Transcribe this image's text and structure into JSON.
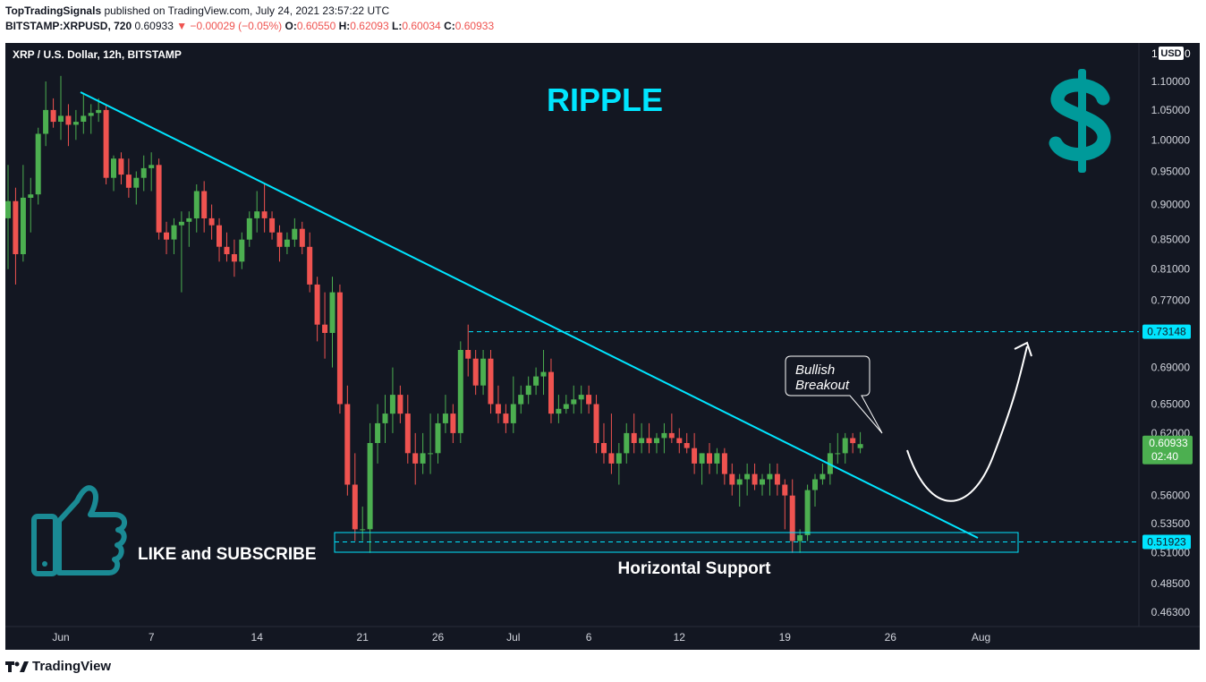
{
  "header": {
    "publisher": "TopTradingSignals",
    "published_text": " published on TradingView.com, July 24, 2021 23:57:22 UTC",
    "symbol": "BITSTAMP:XRPUSD, 720",
    "last": "0.60933",
    "change": "▼ −0.00029 (−0.05%)",
    "o_label": "O:",
    "o": "0.60550",
    "h_label": "H:",
    "h": "0.62093",
    "l_label": "L:",
    "l": "0.60034",
    "c_label": "C:",
    "c": "0.60933"
  },
  "chart_data": {
    "type": "candlestick",
    "title": "XRP / U.S. Dollar, 12h, BITSTAMP",
    "currency": "USD",
    "y_scale": "log",
    "ylim": [
      0.445,
      1.2
    ],
    "y_ticks": [
      "1.10000",
      "1.05000",
      "1.00000",
      "0.95000",
      "0.90000",
      "0.85000",
      "0.81000",
      "0.77000",
      "0.69000",
      "0.65000",
      "0.62000",
      "0.56000",
      "0.53500",
      "0.51000",
      "0.48500",
      "0.46300"
    ],
    "x_ticks": [
      {
        "label": "Jun",
        "i": 7
      },
      {
        "label": "7",
        "i": 19
      },
      {
        "label": "14",
        "i": 33
      },
      {
        "label": "21",
        "i": 47
      },
      {
        "label": "26",
        "i": 57
      },
      {
        "label": "Jul",
        "i": 67
      },
      {
        "label": "6",
        "i": 77
      },
      {
        "label": "12",
        "i": 89
      },
      {
        "label": "19",
        "i": 103
      },
      {
        "label": "26",
        "i": 117
      },
      {
        "label": "Aug",
        "i": 129
      }
    ],
    "ohlc": [
      [
        0.88,
        0.96,
        0.81,
        0.905
      ],
      [
        0.905,
        0.925,
        0.79,
        0.83
      ],
      [
        0.83,
        0.96,
        0.82,
        0.91
      ],
      [
        0.91,
        0.94,
        0.86,
        0.915
      ],
      [
        0.915,
        1.02,
        0.9,
        1.01
      ],
      [
        1.01,
        1.1,
        0.99,
        1.05
      ],
      [
        1.05,
        1.07,
        1.02,
        1.03
      ],
      [
        1.03,
        1.11,
        1.0,
        1.04
      ],
      [
        1.04,
        1.06,
        0.99,
        1.025
      ],
      [
        1.025,
        1.05,
        1.0,
        1.03
      ],
      [
        1.03,
        1.08,
        1.01,
        1.04
      ],
      [
        1.04,
        1.06,
        1.01,
        1.045
      ],
      [
        1.045,
        1.07,
        1.03,
        1.05
      ],
      [
        1.05,
        1.06,
        0.93,
        0.94
      ],
      [
        0.94,
        0.975,
        0.92,
        0.97
      ],
      [
        0.97,
        0.98,
        0.93,
        0.945
      ],
      [
        0.945,
        0.97,
        0.91,
        0.925
      ],
      [
        0.925,
        0.95,
        0.9,
        0.94
      ],
      [
        0.94,
        0.975,
        0.92,
        0.955
      ],
      [
        0.955,
        0.98,
        0.92,
        0.96
      ],
      [
        0.96,
        0.97,
        0.85,
        0.86
      ],
      [
        0.86,
        0.875,
        0.83,
        0.85
      ],
      [
        0.85,
        0.88,
        0.83,
        0.87
      ],
      [
        0.87,
        0.89,
        0.78,
        0.875
      ],
      [
        0.875,
        0.89,
        0.84,
        0.88
      ],
      [
        0.88,
        0.93,
        0.86,
        0.92
      ],
      [
        0.92,
        0.935,
        0.86,
        0.88
      ],
      [
        0.88,
        0.9,
        0.85,
        0.87
      ],
      [
        0.87,
        0.88,
        0.82,
        0.84
      ],
      [
        0.84,
        0.86,
        0.82,
        0.83
      ],
      [
        0.83,
        0.85,
        0.8,
        0.82
      ],
      [
        0.82,
        0.86,
        0.81,
        0.85
      ],
      [
        0.85,
        0.89,
        0.84,
        0.88
      ],
      [
        0.88,
        0.92,
        0.86,
        0.89
      ],
      [
        0.89,
        0.93,
        0.86,
        0.88
      ],
      [
        0.88,
        0.89,
        0.85,
        0.86
      ],
      [
        0.86,
        0.87,
        0.82,
        0.84
      ],
      [
        0.84,
        0.86,
        0.83,
        0.85
      ],
      [
        0.85,
        0.88,
        0.84,
        0.865
      ],
      [
        0.865,
        0.875,
        0.83,
        0.84
      ],
      [
        0.84,
        0.86,
        0.78,
        0.79
      ],
      [
        0.79,
        0.8,
        0.72,
        0.74
      ],
      [
        0.74,
        0.78,
        0.7,
        0.73
      ],
      [
        0.73,
        0.8,
        0.69,
        0.78
      ],
      [
        0.78,
        0.79,
        0.64,
        0.65
      ],
      [
        0.65,
        0.67,
        0.56,
        0.57
      ],
      [
        0.57,
        0.6,
        0.52,
        0.53
      ],
      [
        0.53,
        0.55,
        0.52,
        0.53
      ],
      [
        0.53,
        0.63,
        0.51,
        0.61
      ],
      [
        0.61,
        0.65,
        0.59,
        0.63
      ],
      [
        0.63,
        0.66,
        0.61,
        0.64
      ],
      [
        0.64,
        0.69,
        0.62,
        0.66
      ],
      [
        0.66,
        0.67,
        0.63,
        0.64
      ],
      [
        0.64,
        0.66,
        0.59,
        0.6
      ],
      [
        0.6,
        0.62,
        0.57,
        0.59
      ],
      [
        0.59,
        0.62,
        0.58,
        0.6
      ],
      [
        0.6,
        0.64,
        0.58,
        0.6
      ],
      [
        0.6,
        0.64,
        0.59,
        0.63
      ],
      [
        0.63,
        0.66,
        0.62,
        0.64
      ],
      [
        0.64,
        0.65,
        0.61,
        0.62
      ],
      [
        0.62,
        0.72,
        0.61,
        0.71
      ],
      [
        0.71,
        0.74,
        0.68,
        0.7
      ],
      [
        0.7,
        0.71,
        0.66,
        0.67
      ],
      [
        0.67,
        0.71,
        0.66,
        0.7
      ],
      [
        0.7,
        0.71,
        0.64,
        0.65
      ],
      [
        0.65,
        0.67,
        0.63,
        0.64
      ],
      [
        0.64,
        0.65,
        0.62,
        0.63
      ],
      [
        0.63,
        0.68,
        0.62,
        0.65
      ],
      [
        0.65,
        0.67,
        0.64,
        0.66
      ],
      [
        0.66,
        0.68,
        0.65,
        0.67
      ],
      [
        0.67,
        0.69,
        0.66,
        0.68
      ],
      [
        0.68,
        0.71,
        0.66,
        0.685
      ],
      [
        0.685,
        0.7,
        0.63,
        0.64
      ],
      [
        0.64,
        0.66,
        0.63,
        0.645
      ],
      [
        0.645,
        0.66,
        0.64,
        0.65
      ],
      [
        0.65,
        0.67,
        0.64,
        0.655
      ],
      [
        0.655,
        0.67,
        0.64,
        0.66
      ],
      [
        0.66,
        0.67,
        0.64,
        0.65
      ],
      [
        0.65,
        0.66,
        0.6,
        0.61
      ],
      [
        0.61,
        0.63,
        0.59,
        0.6
      ],
      [
        0.6,
        0.64,
        0.58,
        0.59
      ],
      [
        0.59,
        0.61,
        0.57,
        0.6
      ],
      [
        0.6,
        0.63,
        0.59,
        0.62
      ],
      [
        0.62,
        0.64,
        0.6,
        0.61
      ],
      [
        0.61,
        0.63,
        0.6,
        0.615
      ],
      [
        0.615,
        0.63,
        0.6,
        0.61
      ],
      [
        0.61,
        0.62,
        0.6,
        0.615
      ],
      [
        0.615,
        0.63,
        0.6,
        0.62
      ],
      [
        0.62,
        0.64,
        0.61,
        0.615
      ],
      [
        0.615,
        0.625,
        0.6,
        0.61
      ],
      [
        0.61,
        0.62,
        0.6,
        0.605
      ],
      [
        0.605,
        0.62,
        0.58,
        0.59
      ],
      [
        0.59,
        0.6,
        0.57,
        0.6
      ],
      [
        0.6,
        0.61,
        0.58,
        0.59
      ],
      [
        0.59,
        0.605,
        0.58,
        0.6
      ],
      [
        0.6,
        0.605,
        0.57,
        0.58
      ],
      [
        0.58,
        0.59,
        0.56,
        0.57
      ],
      [
        0.57,
        0.58,
        0.55,
        0.575
      ],
      [
        0.575,
        0.59,
        0.56,
        0.58
      ],
      [
        0.58,
        0.59,
        0.565,
        0.57
      ],
      [
        0.57,
        0.58,
        0.56,
        0.575
      ],
      [
        0.575,
        0.59,
        0.56,
        0.58
      ],
      [
        0.58,
        0.59,
        0.56,
        0.57
      ],
      [
        0.57,
        0.575,
        0.53,
        0.56
      ],
      [
        0.56,
        0.575,
        0.51,
        0.52
      ],
      [
        0.52,
        0.53,
        0.51,
        0.525
      ],
      [
        0.525,
        0.57,
        0.52,
        0.565
      ],
      [
        0.565,
        0.58,
        0.55,
        0.575
      ],
      [
        0.575,
        0.59,
        0.57,
        0.58
      ],
      [
        0.58,
        0.61,
        0.57,
        0.6
      ],
      [
        0.6,
        0.62,
        0.59,
        0.6
      ],
      [
        0.6,
        0.62,
        0.59,
        0.615
      ],
      [
        0.615,
        0.62,
        0.6,
        0.61
      ],
      [
        0.605,
        0.621,
        0.6,
        0.609
      ]
    ],
    "levels": [
      {
        "label": "0.73148",
        "value": 0.73148
      },
      {
        "label": "0.51923",
        "value": 0.51923
      }
    ],
    "last_price_label": "0.60933",
    "countdown": "02:40",
    "annotations": {
      "title": "RIPPLE",
      "callout_line1": "Bullish",
      "callout_line2": "Breakout",
      "support_label": "Horizontal Support",
      "cta": "LIKE and SUBSCRIBE",
      "axis_top_left": "1",
      "axis_top_right": "0"
    },
    "colors": {
      "background": "#131722",
      "up": "#4caf50",
      "down": "#ef5350",
      "trend": "#00e5ff",
      "title": "#00e5ff",
      "dollar": "#009a9a",
      "thumb": "#1a8a94",
      "last_badge": "#4caf50",
      "level_badge": "#00e5ff"
    }
  },
  "footer": {
    "brand": "TradingView"
  }
}
